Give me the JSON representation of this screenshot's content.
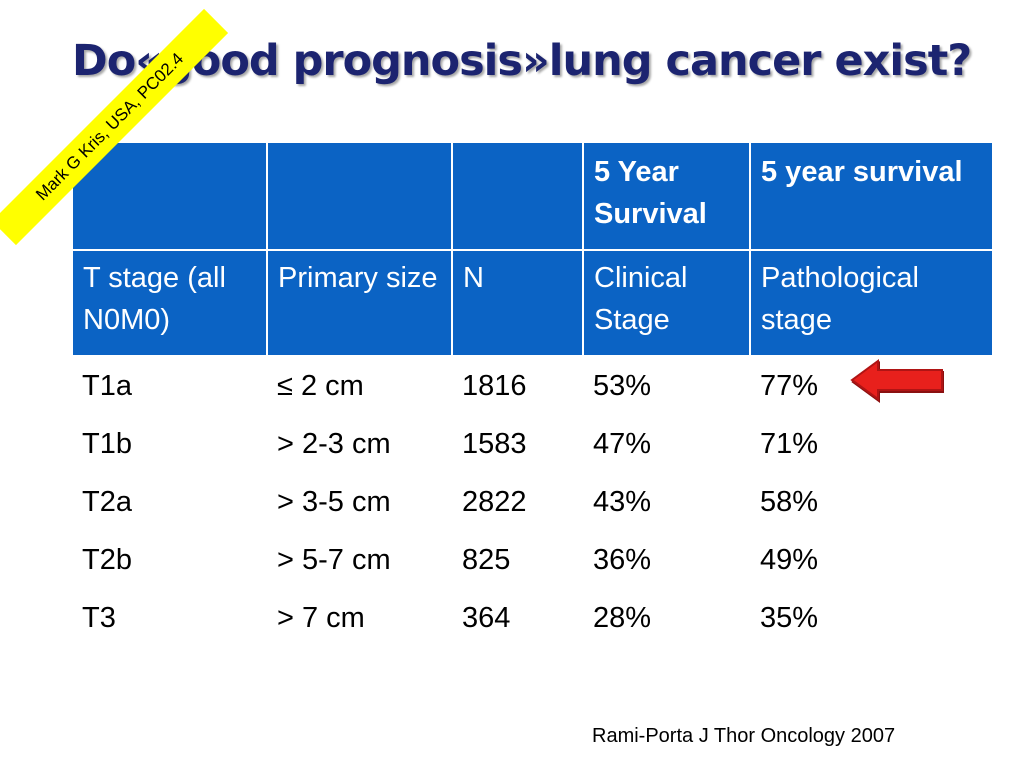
{
  "title": "Do«good prognosis»lung cancer exist?",
  "stamp": "Mark G Kris,  USA, PC02.4",
  "table": {
    "header_row1": [
      "",
      "",
      "",
      "5 Year Survival",
      "5 year survival"
    ],
    "header_row2": [
      "T stage (all N0M0)",
      "Primary size",
      "N",
      "Clinical Stage",
      "Pathological stage"
    ],
    "rows": [
      [
        "T1a",
        "≤ 2 cm",
        "1816",
        "53%",
        "77%"
      ],
      [
        "T1b",
        "> 2-3 cm",
        "1583",
        "47%",
        "71%"
      ],
      [
        "T2a",
        "> 3-5 cm",
        "2822",
        "43%",
        "58%"
      ],
      [
        "T2b",
        "> 5-7 cm",
        "825",
        "36%",
        "49%"
      ],
      [
        "T3",
        "> 7 cm",
        "364",
        "28%",
        "35%"
      ]
    ]
  },
  "arrow_color": "#e8201c",
  "header_color": "#0b63c4",
  "title_color": "#1c2470",
  "citation": "Rami-Porta J Thor Oncology 2007"
}
